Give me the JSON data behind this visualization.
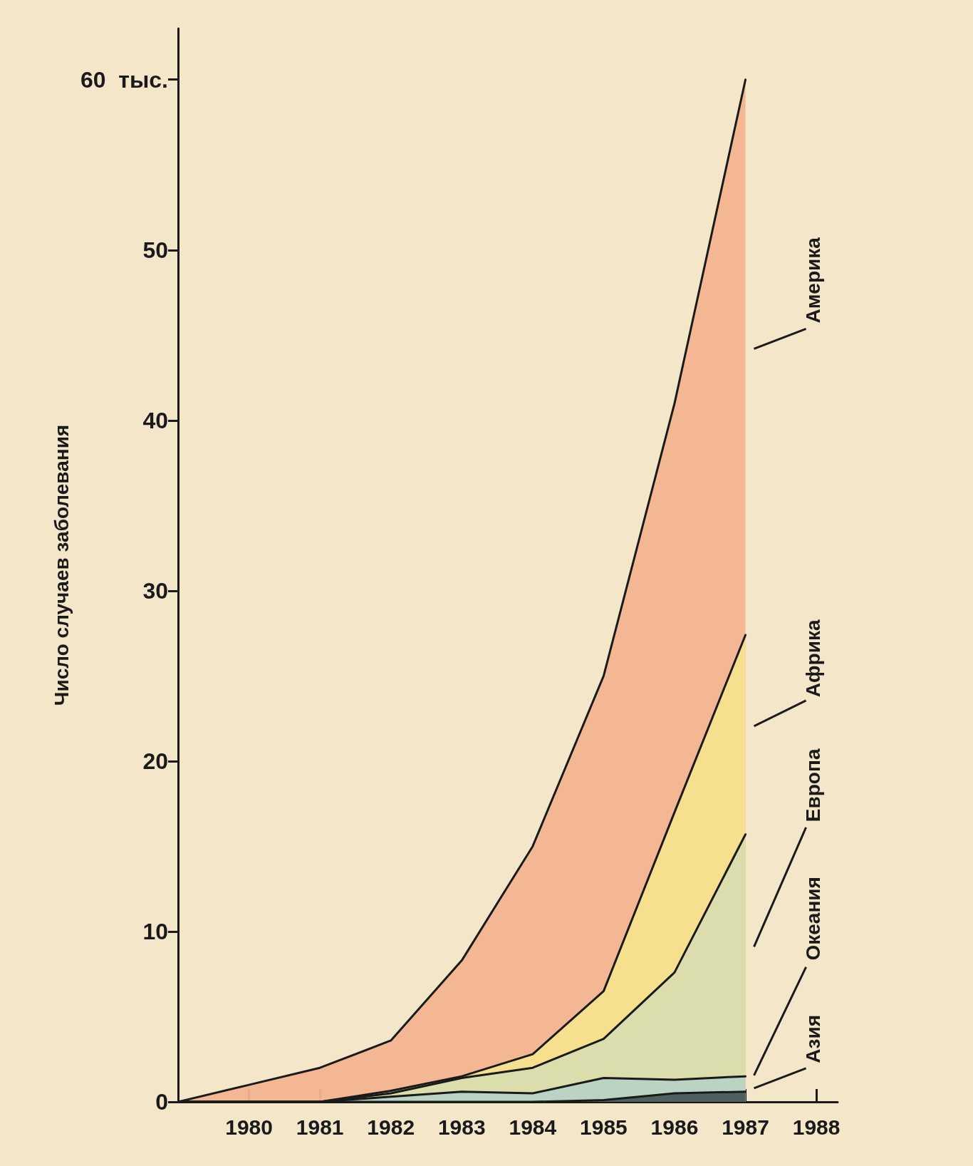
{
  "chart_data": {
    "type": "area",
    "stacked": true,
    "ylabel": "Число случаев заболевания",
    "x": [
      1979,
      1980,
      1981,
      1982,
      1983,
      1984,
      1985,
      1986,
      1987
    ],
    "series": [
      {
        "name": "Азия",
        "color": "#4a5a58",
        "values": [
          0,
          0,
          0,
          0,
          0,
          0,
          0.1,
          0.5,
          0.6
        ]
      },
      {
        "name": "Океания",
        "color": "#b9d2c4",
        "values": [
          0,
          0,
          0,
          0.3,
          0.6,
          0.5,
          1.3,
          0.8,
          0.9
        ]
      },
      {
        "name": "Европа",
        "color": "#d9dcae",
        "values": [
          0,
          0,
          0,
          0.2,
          0.8,
          1.5,
          2.3,
          6.3,
          14.2
        ]
      },
      {
        "name": "Африка",
        "color": "#f6e08c",
        "values": [
          0,
          0,
          0,
          0.15,
          0.1,
          0.8,
          2.8,
          9.4,
          11.7
        ]
      },
      {
        "name": "Америка",
        "color": "#f2b491",
        "values": [
          0,
          1.0,
          2.0,
          2.95,
          6.8,
          12.2,
          18.5,
          24,
          32.6
        ]
      }
    ],
    "xlim": [
      1979,
      1988.3
    ],
    "xticks": [
      1980,
      1981,
      1982,
      1983,
      1984,
      1985,
      1986,
      1987,
      1988
    ],
    "ylim": [
      0,
      63
    ],
    "yticks": [
      0,
      10,
      20,
      30,
      40,
      50,
      {
        "value": 60,
        "label": "60  тыс."
      }
    ],
    "grid": false,
    "legend": false,
    "marker": "none",
    "line_style": "solid"
  }
}
